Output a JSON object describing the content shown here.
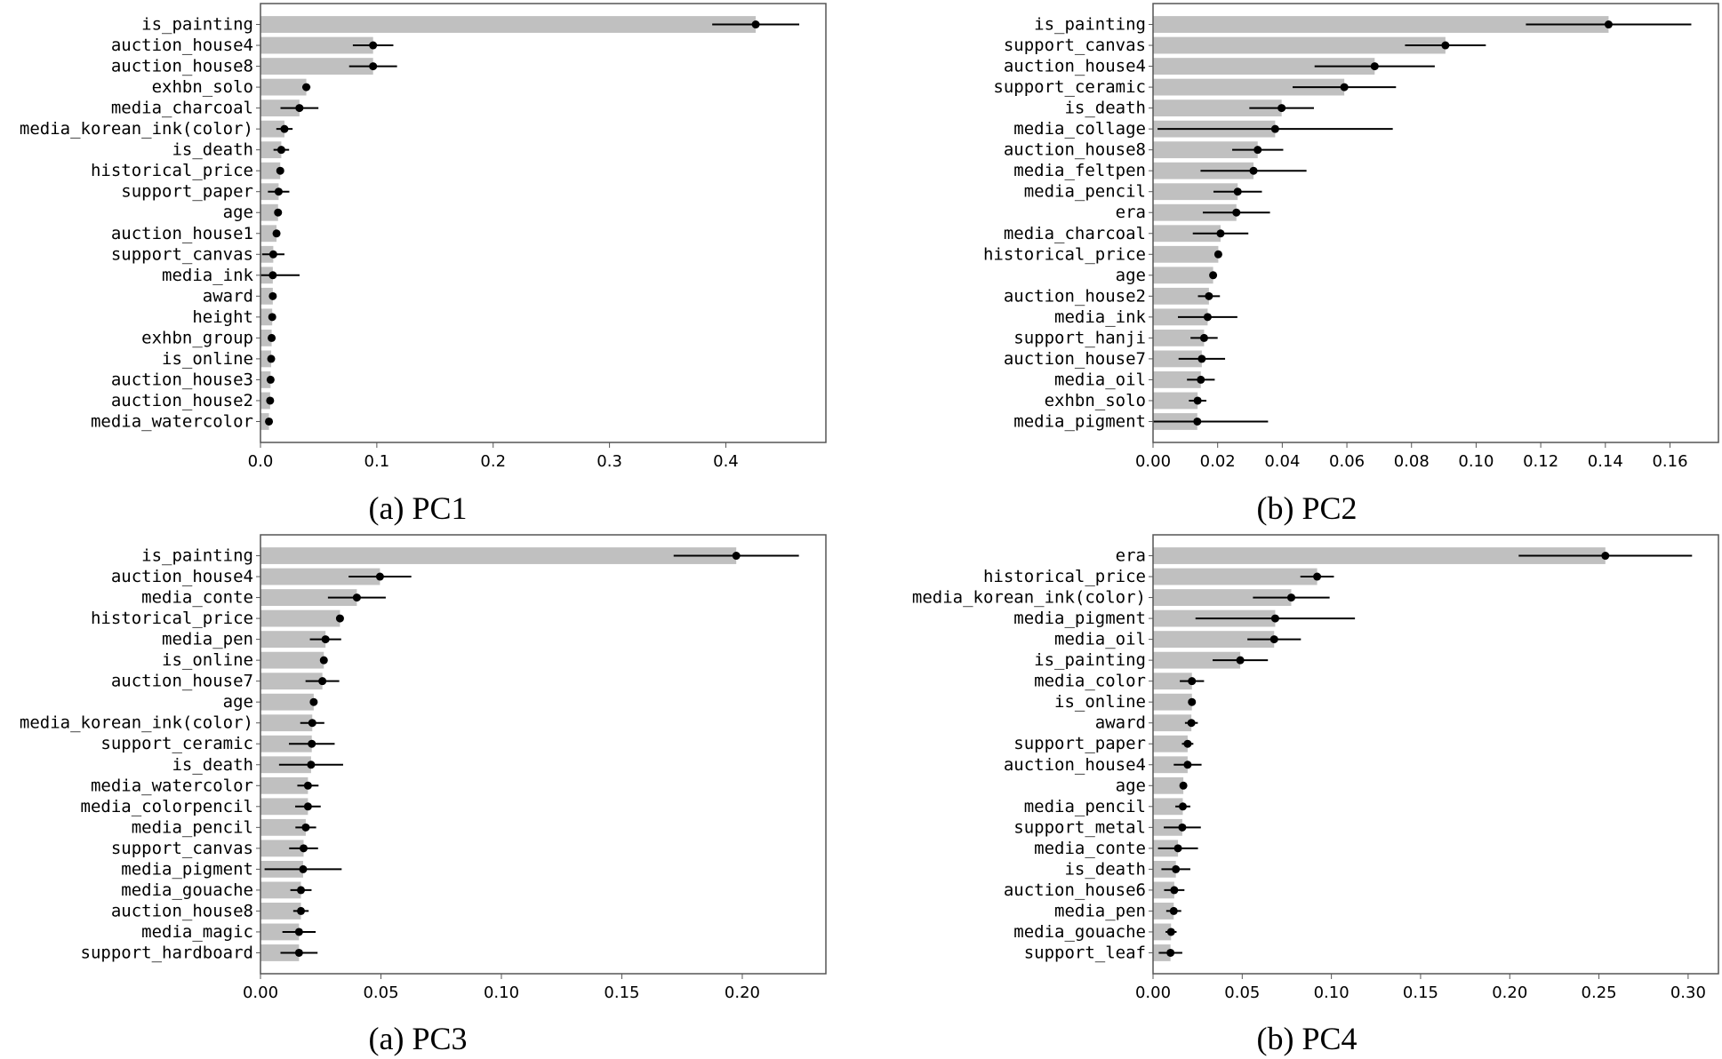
{
  "colors": {
    "bar": "#c0c0c0",
    "error": "#000000",
    "point": "#000000",
    "axis": "#555555"
  },
  "chart_data": [
    {
      "type": "bar",
      "orientation": "horizontal",
      "caption": "(a) PC1",
      "xlim": [
        0,
        0.486
      ],
      "xticks": [
        0,
        0.1,
        0.2,
        0.3,
        0.4
      ],
      "xtick_labels": [
        "0.0",
        "0.1",
        "0.2",
        "0.3",
        "0.4"
      ],
      "grid": false,
      "categories": [
        "is_painting",
        "auction_house4",
        "auction_house8",
        "exhbn_solo",
        "media_charcoal",
        "media_korean_ink(color)",
        "is_death",
        "historical_price",
        "support_paper",
        "age",
        "auction_house1",
        "support_canvas",
        "media_ink",
        "award",
        "height",
        "exhbn_group",
        "is_online",
        "auction_house3",
        "auction_house2",
        "media_watercolor"
      ],
      "values": [
        0.4257,
        0.0968,
        0.0968,
        0.0394,
        0.0335,
        0.0206,
        0.0179,
        0.017,
        0.0156,
        0.0151,
        0.0138,
        0.011,
        0.0106,
        0.0106,
        0.0101,
        0.0096,
        0.0092,
        0.0087,
        0.0083,
        0.0073
      ],
      "errors": [
        0.0374,
        0.0174,
        0.0206,
        0.0035,
        0.0163,
        0.007,
        0.0067,
        0.0005,
        0.0092,
        0.0005,
        0.0005,
        0.0096,
        0.023,
        0.0005,
        0.0005,
        0.0005,
        0.0005,
        0.0005,
        0.0005,
        0.0005
      ]
    },
    {
      "type": "bar",
      "orientation": "horizontal",
      "caption": "(b) PC2",
      "xlim": [
        0,
        0.175
      ],
      "xticks": [
        0,
        0.02,
        0.04,
        0.06,
        0.08,
        0.1,
        0.12,
        0.14,
        0.16
      ],
      "xtick_labels": [
        "0.00",
        "0.02",
        "0.04",
        "0.06",
        "0.08",
        "0.10",
        "0.12",
        "0.14",
        "0.16"
      ],
      "grid": false,
      "categories": [
        "is_painting",
        "support_canvas",
        "auction_house4",
        "support_ceramic",
        "is_death",
        "media_collage",
        "auction_house8",
        "media_feltpen",
        "media_pencil",
        "era",
        "media_charcoal",
        "historical_price",
        "age",
        "auction_house2",
        "media_ink",
        "support_hanji",
        "auction_house7",
        "media_oil",
        "exhbn_solo",
        "media_pigment"
      ],
      "values": [
        0.141,
        0.0905,
        0.0686,
        0.0592,
        0.0398,
        0.0378,
        0.0324,
        0.0311,
        0.0262,
        0.0258,
        0.0209,
        0.0202,
        0.0186,
        0.0173,
        0.0169,
        0.0158,
        0.0151,
        0.0148,
        0.0138,
        0.0137
      ],
      "errors": [
        0.0256,
        0.0125,
        0.0186,
        0.016,
        0.01,
        0.0364,
        0.0079,
        0.0164,
        0.0075,
        0.0104,
        0.0086,
        0.001,
        0.0008,
        0.0034,
        0.0092,
        0.0042,
        0.0072,
        0.0043,
        0.0027,
        0.0219
      ]
    },
    {
      "type": "bar",
      "orientation": "horizontal",
      "caption": "(a) PC3",
      "xlim": [
        0,
        0.2347
      ],
      "xticks": [
        0,
        0.05,
        0.1,
        0.15,
        0.2
      ],
      "xtick_labels": [
        "0.00",
        "0.05",
        "0.10",
        "0.15",
        "0.20"
      ],
      "grid": false,
      "categories": [
        "is_painting",
        "auction_house4",
        "media_conte",
        "historical_price",
        "media_pen",
        "is_online",
        "auction_house7",
        "age",
        "media_korean_ink(color)",
        "support_ceramic",
        "is_death",
        "media_watercolor",
        "media_colorpencil",
        "media_pencil",
        "support_canvas",
        "media_pigment",
        "media_gouache",
        "auction_house8",
        "media_magic",
        "support_hardboard"
      ],
      "values": [
        0.1975,
        0.0496,
        0.04,
        0.033,
        0.027,
        0.0263,
        0.0257,
        0.0221,
        0.0215,
        0.0213,
        0.021,
        0.0197,
        0.0197,
        0.0188,
        0.0179,
        0.0177,
        0.0168,
        0.0168,
        0.016,
        0.016
      ],
      "errors": [
        0.026,
        0.013,
        0.012,
        0.0008,
        0.0065,
        0.001,
        0.007,
        0.0008,
        0.005,
        0.0095,
        0.0133,
        0.0044,
        0.0053,
        0.0043,
        0.006,
        0.016,
        0.0044,
        0.0032,
        0.0069,
        0.0077
      ]
    },
    {
      "type": "bar",
      "orientation": "horizontal",
      "caption": "(b) PC4",
      "xlim": [
        0,
        0.317
      ],
      "xticks": [
        0,
        0.05,
        0.1,
        0.15,
        0.2,
        0.25,
        0.3
      ],
      "xtick_labels": [
        "0.00",
        "0.05",
        "0.10",
        "0.15",
        "0.20",
        "0.25",
        "0.30"
      ],
      "grid": false,
      "categories": [
        "era",
        "historical_price",
        "media_korean_ink(color)",
        "media_pigment",
        "media_oil",
        "is_painting",
        "media_color",
        "is_online",
        "award",
        "support_paper",
        "auction_house4",
        "age",
        "media_pencil",
        "support_metal",
        "media_conte",
        "is_death",
        "auction_house6",
        "media_pen",
        "media_gouache",
        "support_leaf"
      ],
      "values": [
        0.2536,
        0.092,
        0.0775,
        0.0685,
        0.0679,
        0.0489,
        0.0218,
        0.0218,
        0.0215,
        0.0194,
        0.0194,
        0.017,
        0.0167,
        0.0164,
        0.014,
        0.0128,
        0.0119,
        0.0116,
        0.0101,
        0.0098
      ],
      "errors": [
        0.0486,
        0.0094,
        0.0215,
        0.0447,
        0.015,
        0.0155,
        0.0068,
        0.0005,
        0.0036,
        0.0032,
        0.0078,
        0.0006,
        0.0042,
        0.0104,
        0.0112,
        0.0081,
        0.0057,
        0.0042,
        0.0031,
        0.0066
      ]
    }
  ]
}
